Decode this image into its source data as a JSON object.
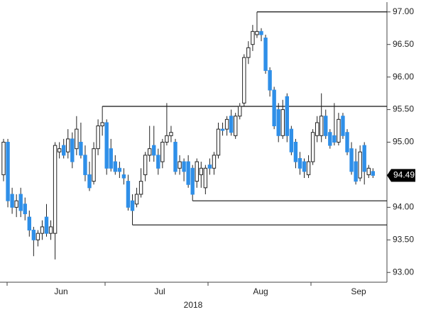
{
  "chart_data": {
    "type": "candlestick",
    "up_color": "#ffffff",
    "down_color": "#2f8fe8",
    "ylim": [
      92.85,
      97.15
    ],
    "yticks": [
      {
        "value": 93,
        "label": "93.00"
      },
      {
        "value": 93.5,
        "label": "93.50"
      },
      {
        "value": 94,
        "label": "94.00"
      },
      {
        "value": 94.5,
        "label": "94.50"
      },
      {
        "value": 95,
        "label": "95.00"
      },
      {
        "value": 95.5,
        "label": "95.50"
      },
      {
        "value": 96,
        "label": "96.00"
      },
      {
        "value": 96.5,
        "label": "96.50"
      },
      {
        "value": 97,
        "label": "97.00"
      }
    ],
    "x_labels": [
      "Jun",
      "Jul",
      "Aug",
      "Sep"
    ],
    "x_year": "2018",
    "last_price": 94.49,
    "levels": [
      97,
      95.55,
      94.1,
      93.73
    ],
    "candles": [
      [
        94.5,
        95.05,
        94.4,
        95.0
      ],
      [
        95.0,
        95.05,
        94.0,
        94.1
      ],
      [
        94.2,
        94.3,
        93.9,
        94.0
      ],
      [
        94.0,
        94.2,
        93.85,
        94.1
      ],
      [
        94.2,
        94.3,
        93.85,
        93.95
      ],
      [
        94.05,
        94.15,
        93.8,
        93.9
      ],
      [
        93.85,
        93.95,
        93.55,
        93.65
      ],
      [
        93.65,
        93.7,
        93.25,
        93.5
      ],
      [
        93.5,
        93.65,
        93.4,
        93.6
      ],
      [
        93.6,
        93.8,
        93.5,
        93.7
      ],
      [
        93.85,
        94.05,
        93.55,
        93.6
      ],
      [
        93.6,
        93.8,
        93.5,
        93.7
      ],
      [
        93.6,
        95.0,
        93.2,
        94.95
      ],
      [
        94.85,
        95.0,
        94.75,
        94.9
      ],
      [
        94.95,
        95.05,
        94.75,
        94.8
      ],
      [
        94.85,
        95.2,
        94.75,
        95.05
      ],
      [
        95.05,
        95.15,
        94.6,
        94.7
      ],
      [
        94.9,
        95.4,
        94.8,
        95.2
      ],
      [
        95.0,
        95.3,
        94.75,
        94.8
      ],
      [
        94.8,
        94.95,
        94.4,
        94.5
      ],
      [
        94.5,
        94.7,
        94.25,
        94.3
      ],
      [
        94.4,
        95.0,
        94.35,
        94.9
      ],
      [
        94.9,
        95.35,
        94.8,
        95.25
      ],
      [
        95.25,
        95.55,
        95.1,
        95.3
      ],
      [
        95.3,
        95.35,
        94.5,
        94.6
      ],
      [
        94.9,
        95.05,
        94.55,
        94.6
      ],
      [
        94.7,
        94.8,
        94.5,
        94.55
      ],
      [
        94.6,
        94.7,
        94.45,
        94.55
      ],
      [
        94.5,
        94.6,
        94.35,
        94.45
      ],
      [
        94.4,
        94.5,
        93.95,
        94.0
      ],
      [
        94.1,
        94.2,
        93.73,
        93.95
      ],
      [
        94.05,
        94.3,
        94.0,
        94.2
      ],
      [
        94.2,
        94.6,
        94.15,
        94.4
      ],
      [
        94.5,
        94.85,
        94.4,
        94.8
      ],
      [
        94.8,
        95.25,
        94.7,
        94.9
      ],
      [
        94.95,
        95.25,
        94.7,
        94.8
      ],
      [
        94.8,
        94.9,
        94.5,
        94.6
      ],
      [
        94.7,
        95.05,
        94.6,
        95.0
      ],
      [
        95.0,
        95.6,
        94.95,
        95.1
      ],
      [
        95.1,
        95.25,
        95.0,
        95.15
      ],
      [
        95.0,
        95.05,
        94.5,
        94.55
      ],
      [
        94.6,
        94.8,
        94.5,
        94.7
      ],
      [
        94.7,
        94.75,
        94.4,
        94.55
      ],
      [
        94.7,
        94.8,
        94.3,
        94.35
      ],
      [
        94.6,
        94.65,
        94.1,
        94.2
      ],
      [
        94.4,
        94.75,
        94.3,
        94.7
      ],
      [
        94.5,
        94.7,
        94.3,
        94.6
      ],
      [
        94.3,
        94.65,
        94.2,
        94.6
      ],
      [
        94.65,
        94.75,
        94.5,
        94.6
      ],
      [
        94.6,
        94.85,
        94.5,
        94.8
      ],
      [
        94.8,
        95.3,
        94.75,
        95.2
      ],
      [
        95.2,
        95.3,
        95.1,
        95.18
      ],
      [
        95.2,
        95.4,
        95.1,
        95.35
      ],
      [
        95.4,
        95.5,
        95.1,
        95.15
      ],
      [
        95.1,
        95.45,
        95.05,
        95.4
      ],
      [
        95.4,
        95.6,
        95.35,
        95.55
      ],
      [
        95.6,
        96.35,
        95.55,
        96.3
      ],
      [
        96.3,
        96.55,
        96.2,
        96.45
      ],
      [
        96.5,
        96.8,
        96.4,
        96.7
      ],
      [
        96.65,
        97.0,
        96.6,
        96.7
      ],
      [
        96.7,
        96.75,
        96.55,
        96.65
      ],
      [
        96.6,
        96.65,
        96.05,
        96.1
      ],
      [
        96.1,
        96.15,
        95.7,
        95.8
      ],
      [
        95.8,
        95.85,
        95.2,
        95.25
      ],
      [
        95.5,
        95.6,
        95.0,
        95.1
      ],
      [
        95.1,
        95.65,
        95.05,
        95.5
      ],
      [
        95.7,
        95.75,
        95.0,
        95.1
      ],
      [
        95.2,
        95.25,
        94.8,
        94.85
      ],
      [
        95.0,
        95.05,
        94.6,
        94.7
      ],
      [
        94.75,
        94.85,
        94.5,
        94.6
      ],
      [
        94.7,
        94.75,
        94.45,
        94.55
      ],
      [
        94.5,
        94.8,
        94.45,
        94.7
      ],
      [
        94.7,
        95.2,
        94.65,
        95.15
      ],
      [
        95.1,
        95.4,
        95.0,
        95.3
      ],
      [
        95.1,
        95.75,
        95.0,
        95.4
      ],
      [
        95.4,
        95.5,
        95.05,
        95.1
      ],
      [
        95.15,
        95.2,
        94.9,
        94.95
      ],
      [
        95.1,
        95.6,
        94.95,
        95.0
      ],
      [
        95.0,
        95.45,
        94.95,
        95.35
      ],
      [
        95.4,
        95.45,
        95.05,
        95.1
      ],
      [
        95.15,
        95.2,
        94.8,
        94.85
      ],
      [
        94.9,
        95.0,
        94.5,
        94.55
      ],
      [
        94.7,
        94.9,
        94.35,
        94.4
      ],
      [
        94.45,
        94.95,
        94.4,
        94.85
      ],
      [
        94.95,
        95.0,
        94.35,
        94.55
      ],
      [
        94.5,
        94.65,
        94.45,
        94.6
      ],
      [
        94.55,
        94.6,
        94.45,
        94.49
      ]
    ]
  }
}
